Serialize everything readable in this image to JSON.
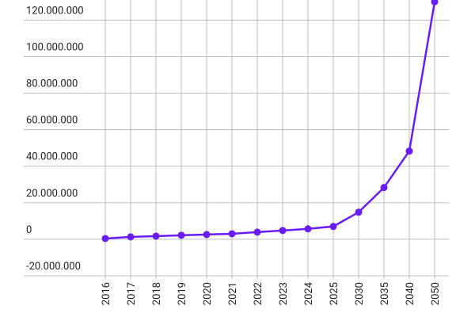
{
  "chart_data": {
    "type": "line",
    "categories": [
      "2016",
      "2017",
      "2018",
      "2019",
      "2020",
      "2021",
      "2022",
      "2023",
      "2024",
      "2025",
      "2030",
      "2035",
      "2040",
      "2050"
    ],
    "series": [
      {
        "color": "#6a1cf6",
        "values": [
          400000,
          1300000,
          1700000,
          2200000,
          2600000,
          3000000,
          3900000,
          4800000,
          5700000,
          7000000,
          14800000,
          28300000,
          48300000,
          130000000
        ]
      }
    ],
    "ylim": [
      -20000000,
      131000000
    ],
    "yticks": [
      {
        "value": -20000000,
        "label": "-20.000.000"
      },
      0,
      {
        "value": 20000000,
        "label": "20.000.000"
      },
      {
        "value": 40000000,
        "label": "40.000.000"
      },
      {
        "value": 60000000,
        "label": "60.000.000"
      },
      {
        "value": 80000000,
        "label": "80.000.000"
      },
      {
        "value": 100000000,
        "label": "100.000.000"
      },
      {
        "value": 120000000,
        "label": "120.000.000"
      }
    ],
    "grid": true
  }
}
